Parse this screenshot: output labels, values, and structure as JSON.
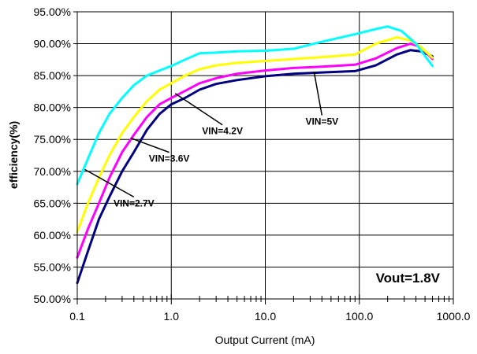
{
  "chart_data": {
    "type": "line",
    "xlabel": "Output Current (mA)",
    "ylabel": "efficiency(%)",
    "x_scale": "log",
    "xlim": [
      0.1,
      1000
    ],
    "ylim": [
      0.5,
      0.95
    ],
    "x_ticks": [
      0.1,
      1,
      10,
      100,
      1000
    ],
    "x_tick_labels": [
      "0.1",
      "1.0",
      "10.0",
      "100.0",
      "1000.0"
    ],
    "y_ticks": [
      0.5,
      0.55,
      0.6,
      0.65,
      0.7,
      0.75,
      0.8,
      0.85,
      0.9,
      0.95
    ],
    "y_tick_labels": [
      "50.00%",
      "55.00%",
      "60.00%",
      "65.00%",
      "70.00%",
      "75.00%",
      "80.00%",
      "85.00%",
      "90.00%",
      "95.00%"
    ],
    "grid": true,
    "annotation": "Vout=1.8V",
    "series": [
      {
        "name": "VIN=2.7V",
        "color": "#000080",
        "x": [
          0.1,
          0.13,
          0.17,
          0.22,
          0.3,
          0.4,
          0.55,
          0.75,
          1.0,
          1.4,
          2,
          3,
          5,
          10,
          20,
          40,
          90,
          150,
          250,
          350,
          450,
          600
        ],
        "y": [
          0.525,
          0.575,
          0.625,
          0.66,
          0.7,
          0.73,
          0.765,
          0.79,
          0.805,
          0.815,
          0.828,
          0.837,
          0.843,
          0.849,
          0.853,
          0.855,
          0.857,
          0.866,
          0.883,
          0.89,
          0.888,
          0.88
        ]
      },
      {
        "name": "VIN=3.6V",
        "color": "#ff00ff",
        "x": [
          0.1,
          0.13,
          0.17,
          0.22,
          0.3,
          0.4,
          0.55,
          0.75,
          1.0,
          1.4,
          2,
          3,
          5,
          10,
          20,
          40,
          90,
          150,
          250,
          350,
          450,
          600
        ],
        "y": [
          0.565,
          0.61,
          0.65,
          0.69,
          0.73,
          0.757,
          0.785,
          0.805,
          0.815,
          0.826,
          0.838,
          0.846,
          0.853,
          0.858,
          0.862,
          0.864,
          0.867,
          0.877,
          0.893,
          0.9,
          0.895,
          0.876
        ]
      },
      {
        "name": "VIN=4.2V",
        "color": "#ffff00",
        "x": [
          0.1,
          0.13,
          0.17,
          0.22,
          0.3,
          0.4,
          0.55,
          0.75,
          1.0,
          1.4,
          2,
          3,
          5,
          10,
          20,
          40,
          90,
          150,
          250,
          350,
          450,
          600
        ],
        "y": [
          0.605,
          0.65,
          0.69,
          0.725,
          0.76,
          0.785,
          0.81,
          0.828,
          0.838,
          0.85,
          0.86,
          0.866,
          0.87,
          0.873,
          0.876,
          0.879,
          0.883,
          0.9,
          0.91,
          0.905,
          0.895,
          0.878
        ]
      },
      {
        "name": "VIN=5V",
        "color": "#00ffff",
        "x": [
          0.1,
          0.13,
          0.17,
          0.22,
          0.3,
          0.4,
          0.55,
          0.75,
          1.0,
          1.4,
          2,
          3,
          5,
          10,
          20,
          40,
          90,
          150,
          200,
          280,
          400,
          600
        ],
        "y": [
          0.68,
          0.72,
          0.76,
          0.79,
          0.815,
          0.835,
          0.85,
          0.858,
          0.865,
          0.875,
          0.885,
          0.886,
          0.888,
          0.889,
          0.892,
          0.903,
          0.915,
          0.923,
          0.927,
          0.92,
          0.9,
          0.865
        ]
      }
    ],
    "callouts": [
      {
        "label": "VIN=5V",
        "x": 33,
        "y": 0.856,
        "text_x": 40,
        "text_y": 0.773,
        "text_anchor": "middle"
      },
      {
        "label": "VIN=4.2V",
        "x": 1.1,
        "y": 0.822,
        "text_x": 3.5,
        "text_y": 0.758,
        "text_anchor": "middle"
      },
      {
        "label": "VIN=3.6V",
        "x": 0.37,
        "y": 0.752,
        "text_x": 0.95,
        "text_y": 0.715,
        "text_anchor": "middle"
      },
      {
        "label": "VIN=2.7V",
        "x": 0.12,
        "y": 0.703,
        "text_x": 0.4,
        "text_y": 0.645,
        "text_anchor": "middle"
      }
    ]
  }
}
